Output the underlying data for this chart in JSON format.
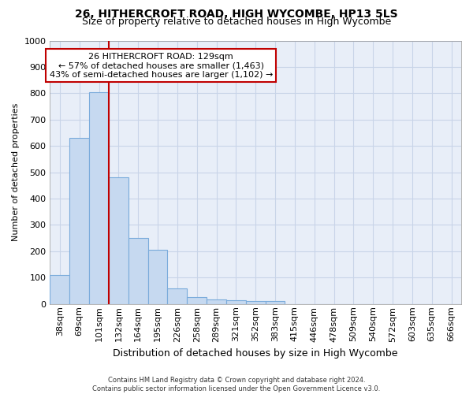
{
  "title": "26, HITHERCROFT ROAD, HIGH WYCOMBE, HP13 5LS",
  "subtitle": "Size of property relative to detached houses in High Wycombe",
  "xlabel": "Distribution of detached houses by size in High Wycombe",
  "ylabel": "Number of detached properties",
  "footer_line1": "Contains HM Land Registry data © Crown copyright and database right 2024.",
  "footer_line2": "Contains public sector information licensed under the Open Government Licence v3.0.",
  "bar_labels": [
    "38sqm",
    "69sqm",
    "101sqm",
    "132sqm",
    "164sqm",
    "195sqm",
    "226sqm",
    "258sqm",
    "289sqm",
    "321sqm",
    "352sqm",
    "383sqm",
    "415sqm",
    "446sqm",
    "478sqm",
    "509sqm",
    "540sqm",
    "572sqm",
    "603sqm",
    "635sqm",
    "666sqm"
  ],
  "bar_values": [
    110,
    630,
    805,
    480,
    250,
    205,
    60,
    27,
    18,
    13,
    10,
    10,
    0,
    0,
    0,
    0,
    0,
    0,
    0,
    0,
    0
  ],
  "bar_color": "#c6d9f0",
  "bar_edge_color": "#7aabdb",
  "vline_color": "#c00000",
  "vline_x": 2.5,
  "annotation_text": "26 HITHERCROFT ROAD: 129sqm\n← 57% of detached houses are smaller (1,463)\n43% of semi-detached houses are larger (1,102) →",
  "annotation_box_facecolor": "#ffffff",
  "annotation_box_edgecolor": "#c00000",
  "ylim": [
    0,
    1000
  ],
  "yticks": [
    0,
    100,
    200,
    300,
    400,
    500,
    600,
    700,
    800,
    900,
    1000
  ],
  "grid_color": "#c8d4e8",
  "plot_bg_color": "#e8eef8",
  "title_fontsize": 10,
  "subtitle_fontsize": 9,
  "ylabel_fontsize": 8,
  "xlabel_fontsize": 9,
  "tick_fontsize": 8,
  "annot_fontsize": 8
}
